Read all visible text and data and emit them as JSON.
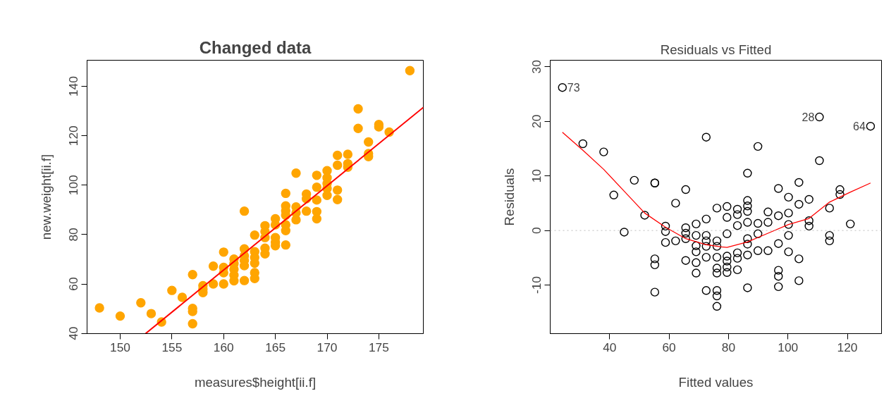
{
  "chart_data": [
    {
      "type": "scatter",
      "title": "Changed data",
      "xlabel": "measures$height[ii.f]",
      "ylabel": "new.weight[ii.f]",
      "xlim": [
        146.8,
        179.3
      ],
      "ylim": [
        39.9,
        150.6
      ],
      "xticks": [
        150,
        155,
        160,
        165,
        170,
        175
      ],
      "yticks": [
        40,
        60,
        80,
        100,
        120,
        140
      ],
      "grid": false,
      "series": [
        {
          "marker": "circle",
          "color": "#ffa500",
          "x": [
            148,
            150,
            152,
            153,
            154,
            155,
            156,
            157,
            157,
            157,
            157,
            158,
            158,
            158,
            159,
            159,
            160,
            160,
            160,
            160,
            161,
            161,
            161,
            161,
            161,
            162,
            162,
            162,
            162,
            162,
            162,
            163,
            163,
            163,
            163,
            163,
            163,
            164,
            164,
            164,
            164,
            164,
            165,
            165,
            165,
            165,
            165,
            166,
            166,
            166,
            166,
            166,
            166,
            166,
            167,
            167,
            167,
            167,
            168,
            168,
            168,
            169,
            169,
            169,
            169,
            169,
            170,
            170,
            170,
            170,
            170,
            171,
            171,
            171,
            171,
            172,
            172,
            172,
            173,
            173,
            174,
            174,
            174,
            175,
            175,
            176,
            178
          ],
          "values": [
            50.3,
            47.0,
            52.4,
            48.0,
            44.6,
            57.4,
            54.6,
            63.8,
            50.1,
            48.9,
            43.9,
            59.3,
            57.9,
            56.5,
            67.2,
            60.0,
            72.9,
            66.7,
            64.6,
            60.0,
            70.1,
            68.2,
            66.0,
            63.6,
            61.3,
            89.5,
            74.2,
            71.4,
            69.5,
            67.4,
            61.4,
            79.8,
            73.1,
            70.7,
            68.4,
            64.6,
            62.2,
            83.6,
            81.2,
            78.8,
            74.5,
            72.2,
            86.4,
            84.0,
            78.8,
            76.9,
            75.5,
            96.7,
            91.6,
            89.7,
            87.8,
            84.0,
            81.6,
            75.8,
            104.9,
            91.2,
            88.8,
            86.0,
            96.4,
            94.5,
            89.5,
            104.0,
            99.2,
            94.0,
            89.3,
            86.4,
            105.9,
            103.0,
            100.7,
            98.7,
            95.9,
            112.1,
            108.1,
            98.0,
            94.2,
            112.5,
            108.7,
            107.3,
            130.9,
            123.0,
            117.5,
            112.8,
            111.6,
            124.6,
            123.6,
            121.5,
            146.4
          ]
        },
        {
          "type": "line",
          "marker": "none",
          "color": "#ff0000",
          "x": [
            152.45,
            179.3
          ],
          "values": [
            39.9,
            131.5
          ]
        }
      ]
    },
    {
      "type": "scatter",
      "title": "Residuals vs Fitted",
      "xlabel": "Fitted values",
      "ylabel": "Residuals",
      "xlim": [
        20,
        131.5
      ],
      "ylim": [
        -18.9,
        31.2
      ],
      "xticks": [
        40,
        60,
        80,
        100,
        120
      ],
      "yticks": [
        -10,
        0,
        10,
        20,
        30
      ],
      "grid": false,
      "series": [
        {
          "marker": "circle",
          "color": "#000000",
          "x": [
            24.1,
            31.0,
            38.0,
            41.4,
            44.9,
            48.3,
            51.8,
            55.2,
            55.2,
            55.2,
            55.2,
            55.2,
            58.8,
            58.8,
            58.8,
            62.2,
            62.2,
            65.6,
            65.6,
            65.6,
            65.6,
            65.6,
            69.1,
            69.1,
            69.1,
            69.1,
            69.1,
            69.1,
            72.5,
            72.5,
            72.5,
            72.5,
            72.5,
            72.5,
            72.5,
            76.1,
            76.1,
            76.1,
            76.1,
            76.1,
            76.1,
            76.1,
            76.1,
            76.1,
            79.5,
            79.5,
            79.5,
            79.5,
            79.5,
            79.5,
            79.5,
            83.0,
            83.0,
            83.0,
            83.0,
            83.0,
            83.0,
            86.4,
            86.4,
            86.4,
            86.4,
            86.4,
            86.4,
            86.4,
            86.4,
            86.4,
            89.9,
            89.9,
            89.9,
            89.9,
            93.3,
            93.3,
            93.3,
            96.8,
            96.8,
            96.8,
            96.8,
            96.8,
            96.8,
            100.2,
            100.2,
            100.2,
            100.2,
            100.2,
            103.7,
            103.7,
            103.7,
            103.7,
            107.1,
            107.1,
            107.1,
            110.6,
            110.6,
            114.0,
            114.0,
            114.0,
            117.5,
            117.5,
            121.0,
            127.8
          ],
          "values": [
            26.2,
            15.9,
            14.4,
            6.5,
            -0.3,
            9.2,
            2.8,
            8.7,
            8.7,
            -5.2,
            -6.3,
            -11.3,
            0.8,
            -0.2,
            -2.2,
            5.0,
            -1.9,
            7.5,
            0.5,
            -0.5,
            -1.5,
            -5.5,
            1.2,
            -0.9,
            -2.8,
            -3.9,
            -5.9,
            -7.8,
            17.1,
            2.1,
            -0.9,
            -1.9,
            -2.9,
            -4.9,
            -11.0,
            4.1,
            -1.9,
            -2.9,
            -4.9,
            -6.9,
            -7.8,
            -11.0,
            -12.0,
            -13.9,
            4.4,
            2.4,
            -0.6,
            -4.7,
            -5.6,
            -6.7,
            -7.7,
            3.9,
            2.9,
            0.9,
            -4.1,
            -5.1,
            -7.2,
            10.5,
            5.5,
            4.5,
            3.5,
            1.5,
            -1.5,
            -2.5,
            -4.5,
            -10.5,
            15.4,
            1.3,
            -0.6,
            -3.7,
            3.4,
            1.5,
            -3.7,
            7.7,
            2.7,
            -2.4,
            -7.3,
            -8.4,
            -10.3,
            6.1,
            3.2,
            1.1,
            -0.9,
            -3.9,
            8.8,
            4.8,
            -5.2,
            -9.2,
            5.7,
            1.8,
            0.8,
            20.8,
            12.8,
            4.1,
            -0.9,
            -1.9,
            7.5,
            6.6,
            1.2,
            19.1
          ]
        },
        {
          "type": "line",
          "marker": "none",
          "color": "#ff0000",
          "x": [
            24.1,
            31.0,
            38.0,
            44.9,
            51.8,
            58.8,
            65.6,
            72.5,
            77.6,
            79.5,
            86.4,
            93.3,
            100.2,
            107.1,
            114.0,
            120.9,
            127.8
          ],
          "values": [
            18.0,
            14.7,
            11.2,
            7.2,
            3.2,
            0.6,
            -1.5,
            -2.6,
            -3.0,
            -3.1,
            -2.1,
            -0.5,
            1.1,
            2.2,
            5.2,
            7.0,
            8.7
          ]
        }
      ],
      "ref_lines": [
        {
          "axis": "y",
          "value": 0,
          "color": "#bebebe",
          "line_style": "dotted"
        }
      ],
      "annotations": [
        {
          "text": "73",
          "x": 24.1,
          "y": 26.2
        },
        {
          "text": "28",
          "x": 110.6,
          "y": 20.8
        },
        {
          "text": "64",
          "x": 127.8,
          "y": 19.1
        }
      ]
    }
  ]
}
